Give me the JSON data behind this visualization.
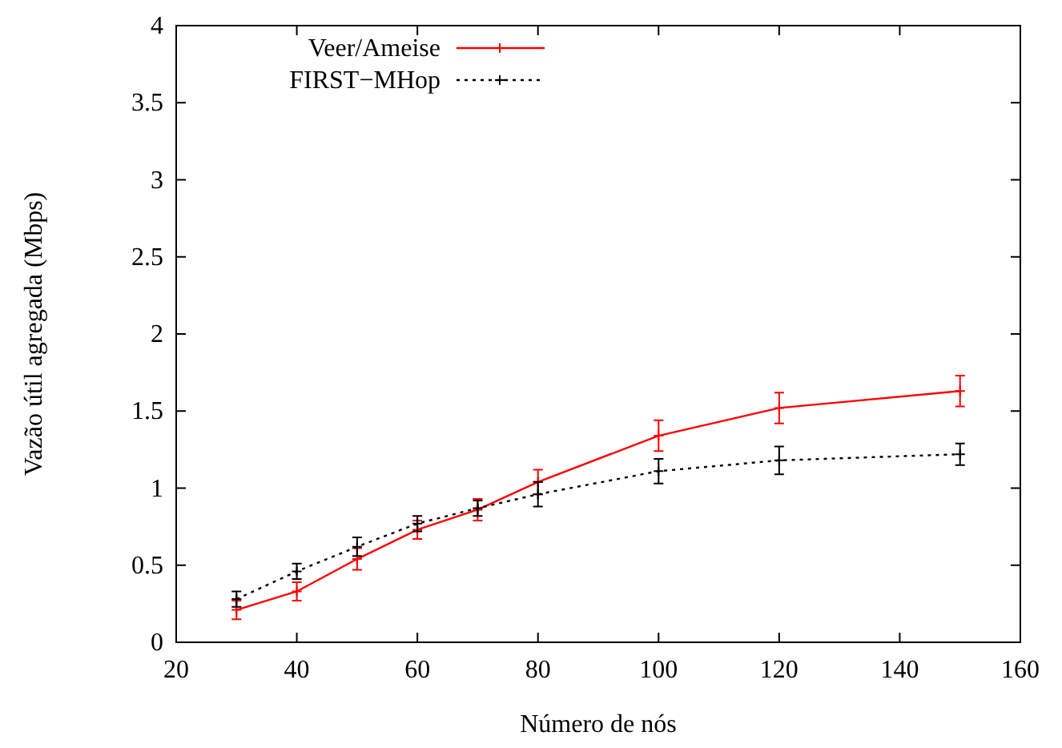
{
  "chart_data": {
    "type": "line",
    "xlabel": "Número de nós",
    "ylabel": "Vazão útil agregada (Mbps)",
    "xlim": [
      20,
      160
    ],
    "xticks": [
      20,
      40,
      60,
      80,
      100,
      120,
      140,
      160
    ],
    "ylim": [
      0,
      4
    ],
    "yticks": [
      0,
      0.5,
      1,
      1.5,
      2,
      2.5,
      3,
      3.5,
      4
    ],
    "x": [
      30,
      40,
      50,
      60,
      70,
      80,
      100,
      120,
      150
    ],
    "legend": "top left",
    "grid": false,
    "series": [
      {
        "name": "Veer/Ameise",
        "color": "#ff0000",
        "line_style": "solid",
        "marker": "cross",
        "values": [
          0.21,
          0.33,
          0.54,
          0.73,
          0.86,
          1.04,
          1.34,
          1.52,
          1.63
        ],
        "errors": [
          0.06,
          0.06,
          0.07,
          0.06,
          0.07,
          0.08,
          0.1,
          0.1,
          0.1
        ]
      },
      {
        "name": "FIRST−MHop",
        "color": "#000000",
        "line_style": "dotted",
        "marker": "cross",
        "values": [
          0.28,
          0.46,
          0.62,
          0.77,
          0.87,
          0.96,
          1.11,
          1.18,
          1.22
        ],
        "errors": [
          0.05,
          0.05,
          0.06,
          0.05,
          0.05,
          0.08,
          0.08,
          0.09,
          0.07
        ]
      }
    ]
  }
}
